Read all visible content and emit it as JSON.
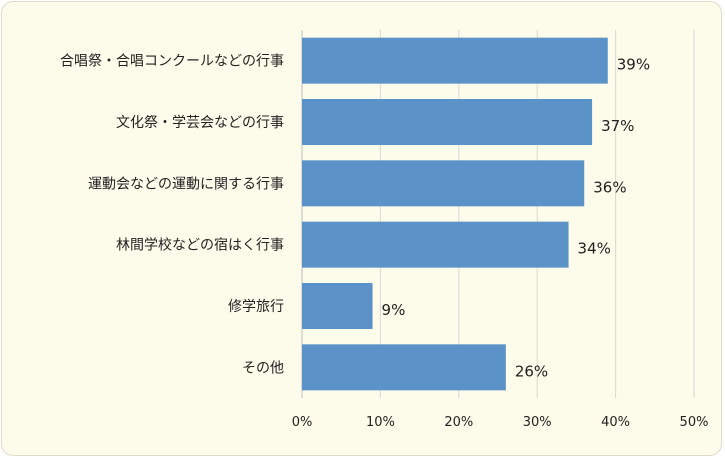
{
  "chart_data": {
    "type": "bar",
    "orientation": "horizontal",
    "categories": [
      "合唱祭・合唱コンクールなどの行事",
      "文化祭・学芸会などの行事",
      "運動会などの運動に関する行事",
      "林間学校などの宿はく行事",
      "修学旅行",
      "その他"
    ],
    "values": [
      39,
      37,
      36,
      34,
      9,
      26
    ],
    "value_labels": [
      "39%",
      "37%",
      "36%",
      "34%",
      "9%",
      "26%"
    ],
    "xlim": [
      0,
      50
    ],
    "xticks": [
      "0%",
      "10%",
      "20%",
      "30%",
      "40%",
      "50%"
    ],
    "grid": true,
    "legend": "none",
    "colors": {
      "bar": "#5b93c9",
      "background": "#fdfbea",
      "grid": "#d9d9d9"
    }
  }
}
